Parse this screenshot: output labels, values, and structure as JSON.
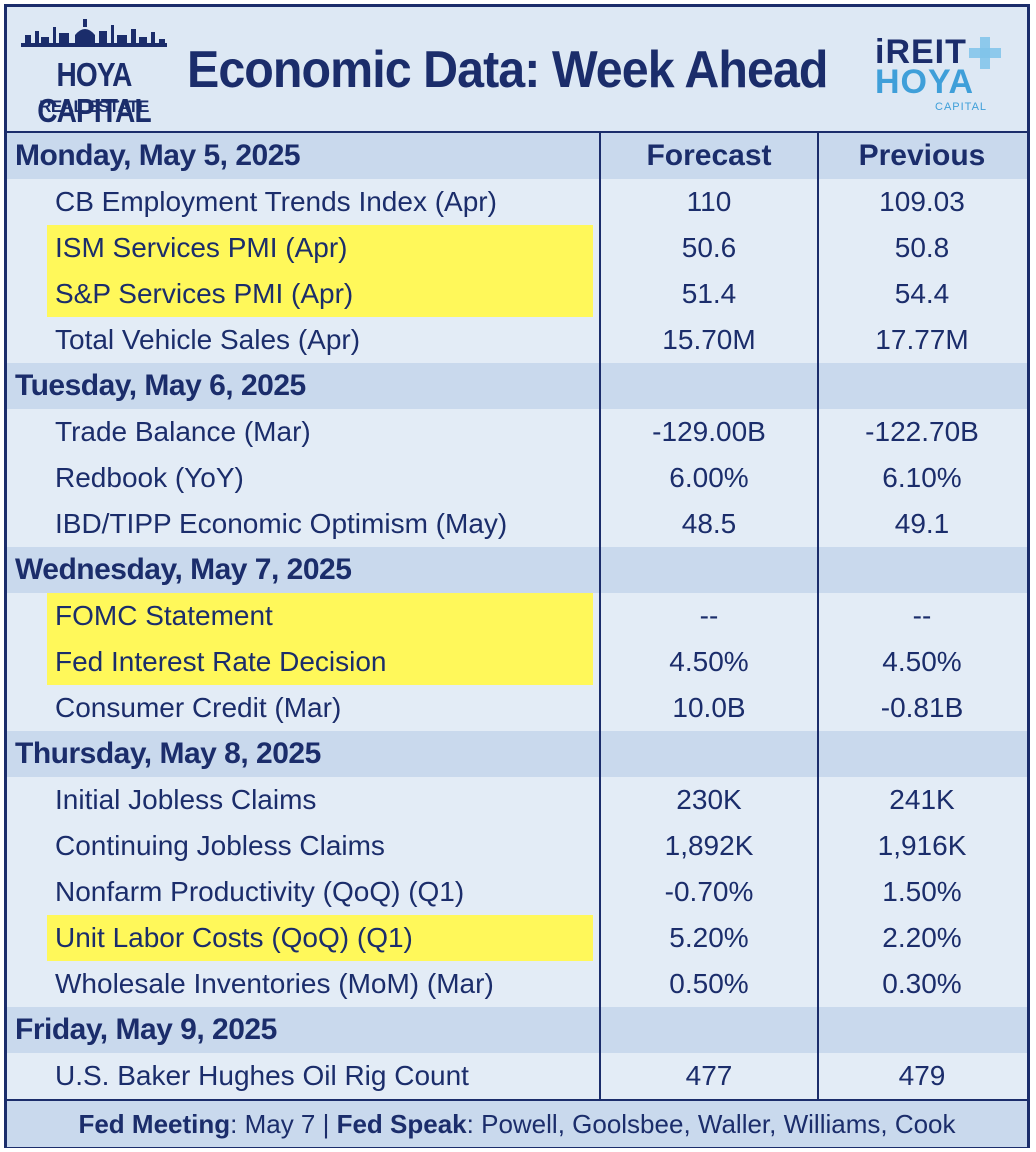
{
  "header": {
    "logo_left_brand": "HOYA CAPITAL",
    "logo_left_sub": "REAL ESTATE",
    "title": "Economic Data: Week Ahead",
    "logo_right_top": "iREIT",
    "logo_right_mid": "HOYA",
    "logo_right_sub": "CAPITAL"
  },
  "columns": {
    "forecast": "Forecast",
    "previous": "Previous"
  },
  "days": [
    {
      "label": "Monday, May 5, 2025",
      "show_headers": true,
      "items": [
        {
          "label": "CB Employment Trends Index (Apr)",
          "forecast": "110",
          "previous": "109.03",
          "highlight": false
        },
        {
          "label": "ISM Services PMI (Apr)",
          "forecast": "50.6",
          "previous": "50.8",
          "highlight": true
        },
        {
          "label": "S&P Services PMI (Apr)",
          "forecast": "51.4",
          "previous": "54.4",
          "highlight": true
        },
        {
          "label": "Total Vehicle Sales (Apr)",
          "forecast": "15.70M",
          "previous": "17.77M",
          "highlight": false
        }
      ]
    },
    {
      "label": "Tuesday, May 6, 2025",
      "items": [
        {
          "label": "Trade Balance (Mar)",
          "forecast": "-129.00B",
          "previous": "-122.70B",
          "highlight": false
        },
        {
          "label": "Redbook (YoY)",
          "forecast": "6.00%",
          "previous": "6.10%",
          "highlight": false
        },
        {
          "label": "IBD/TIPP Economic Optimism (May)",
          "forecast": "48.5",
          "previous": "49.1",
          "highlight": false
        }
      ]
    },
    {
      "label": "Wednesday, May 7, 2025",
      "items": [
        {
          "label": "FOMC Statement",
          "forecast": "--",
          "previous": "--",
          "highlight": true
        },
        {
          "label": "Fed Interest Rate Decision",
          "forecast": "4.50%",
          "previous": "4.50%",
          "highlight": true
        },
        {
          "label": "Consumer Credit (Mar)",
          "forecast": "10.0B",
          "previous": "-0.81B",
          "highlight": false
        }
      ]
    },
    {
      "label": "Thursday, May 8, 2025",
      "items": [
        {
          "label": "Initial Jobless Claims",
          "forecast": "230K",
          "previous": "241K",
          "highlight": false
        },
        {
          "label": "Continuing Jobless Claims",
          "forecast": "1,892K",
          "previous": "1,916K",
          "highlight": false
        },
        {
          "label": "Nonfarm Productivity (QoQ) (Q1)",
          "forecast": "-0.70%",
          "previous": "1.50%",
          "highlight": false
        },
        {
          "label": "Unit Labor Costs (QoQ) (Q1)",
          "forecast": "5.20%",
          "previous": "2.20%",
          "highlight": true
        },
        {
          "label": "Wholesale Inventories (MoM) (Mar)",
          "forecast": "0.50%",
          "previous": "0.30%",
          "highlight": false
        }
      ]
    },
    {
      "label": "Friday, May 9, 2025",
      "items": [
        {
          "label": "U.S. Baker Hughes Oil Rig Count",
          "forecast": "477",
          "previous": "479",
          "highlight": false
        }
      ]
    }
  ],
  "footer": {
    "meeting_label": "Fed Meeting",
    "meeting_value": ": May 7 | ",
    "speak_label": "Fed Speak",
    "speak_value": ": Powell, Goolsbee, Waller, Williams, Cook"
  },
  "colors": {
    "navy": "#1b2d6b",
    "highlight": "#fff85a",
    "day_row": "#c9d9ed",
    "item_row": "#e3ecf6",
    "accent_blue": "#3f9fd9"
  }
}
